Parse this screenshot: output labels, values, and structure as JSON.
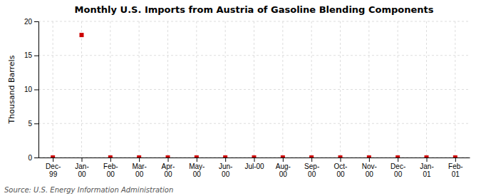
{
  "chart_data": {
    "type": "scatter",
    "title": "Monthly U.S. Imports from Austria of Gasoline Blending Components",
    "ylabel": "Thousand Barrels",
    "source": "Source: U.S. Energy Information Administration",
    "categories": [
      "Dec-\n99",
      "Jan-\n00",
      "Feb-\n00",
      "Mar-\n00",
      "Apr-\n00",
      "May-\n00",
      "Jun-\n00",
      "Jul-00",
      "Aug-\n00",
      "Sep-\n00",
      "Oct-\n00",
      "Nov-\n00",
      "Dec-\n00",
      "Jan-\n01",
      "Feb-\n01"
    ],
    "values": [
      0,
      18,
      0,
      0,
      0,
      0,
      0,
      0,
      0,
      0,
      0,
      0,
      0,
      0,
      0
    ],
    "color": "#CC0000",
    "marker": "square",
    "ylim": [
      0,
      20
    ],
    "yticks": [
      0,
      5,
      10,
      15,
      20
    ],
    "grid": true
  }
}
